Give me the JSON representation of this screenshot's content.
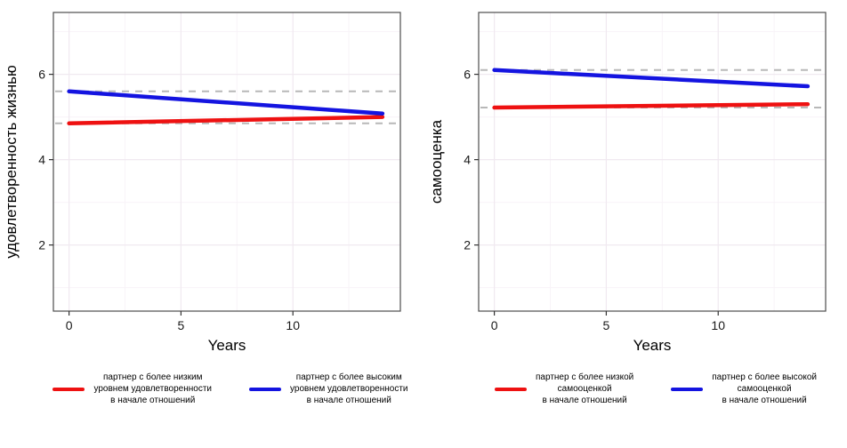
{
  "page": {
    "background": "#ffffff"
  },
  "style": {
    "grid_major_color": "#f0e9f0",
    "grid_minor_color": "#f8f3f8",
    "reference_line_color": "#b8b8b8",
    "panel_border_color": "#4d4d4d",
    "tick_color": "#333333",
    "tick_label_color": "#1a1a1a",
    "axis_label_color": "#000000",
    "red": "#ee1111",
    "blue": "#1414e0"
  },
  "chart_data": [
    {
      "type": "line",
      "title": "",
      "xlabel": "Years",
      "ylabel": "удовлетворенность жизнью",
      "xlim": [
        -0.7,
        14.8
      ],
      "ylim": [
        0.45,
        7.45
      ],
      "xticks": [
        0,
        5,
        10
      ],
      "yticks": [
        2,
        4,
        6
      ],
      "grid": true,
      "legend_position": "bottom",
      "reference_lines": [
        {
          "y": 5.6,
          "style": "dashed"
        },
        {
          "y": 4.85,
          "style": "dashed"
        }
      ],
      "series": [
        {
          "name": "партнер с более низким уровнем удовлетворенности в начале отношений",
          "legend_lines": [
            "партнер с более низким",
            "уровнем удовлетворенности",
            "в начале отношений"
          ],
          "color": "#ee1111",
          "x": [
            0,
            14
          ],
          "y": [
            4.85,
            5.0
          ]
        },
        {
          "name": "партнер с более высоким уровнем удовлетворенности в начале отношений",
          "legend_lines": [
            "партнер с более высоким",
            "уровнем удовлетворенности",
            "в начале отношений"
          ],
          "color": "#1414e0",
          "x": [
            0,
            14
          ],
          "y": [
            5.6,
            5.08
          ]
        }
      ]
    },
    {
      "type": "line",
      "title": "",
      "xlabel": "Years",
      "ylabel": "самооценка",
      "xlim": [
        -0.7,
        14.8
      ],
      "ylim": [
        0.45,
        7.45
      ],
      "xticks": [
        0,
        5,
        10
      ],
      "yticks": [
        2,
        4,
        6
      ],
      "grid": true,
      "legend_position": "bottom",
      "reference_lines": [
        {
          "y": 6.1,
          "style": "dashed"
        },
        {
          "y": 5.22,
          "style": "dashed"
        }
      ],
      "series": [
        {
          "name": "партнер с более низкой самооценкой в начале отношений",
          "legend_lines": [
            "партнер с более низкой",
            "самооценкой",
            "в начале отношений"
          ],
          "color": "#ee1111",
          "x": [
            0,
            14
          ],
          "y": [
            5.22,
            5.3
          ]
        },
        {
          "name": "партнер с более высокой самооценкой в начале отношений",
          "legend_lines": [
            "партнер с более высокой",
            "самооценкой",
            "в начале отношений"
          ],
          "color": "#1414e0",
          "x": [
            0,
            14
          ],
          "y": [
            6.1,
            5.72
          ]
        }
      ]
    }
  ]
}
